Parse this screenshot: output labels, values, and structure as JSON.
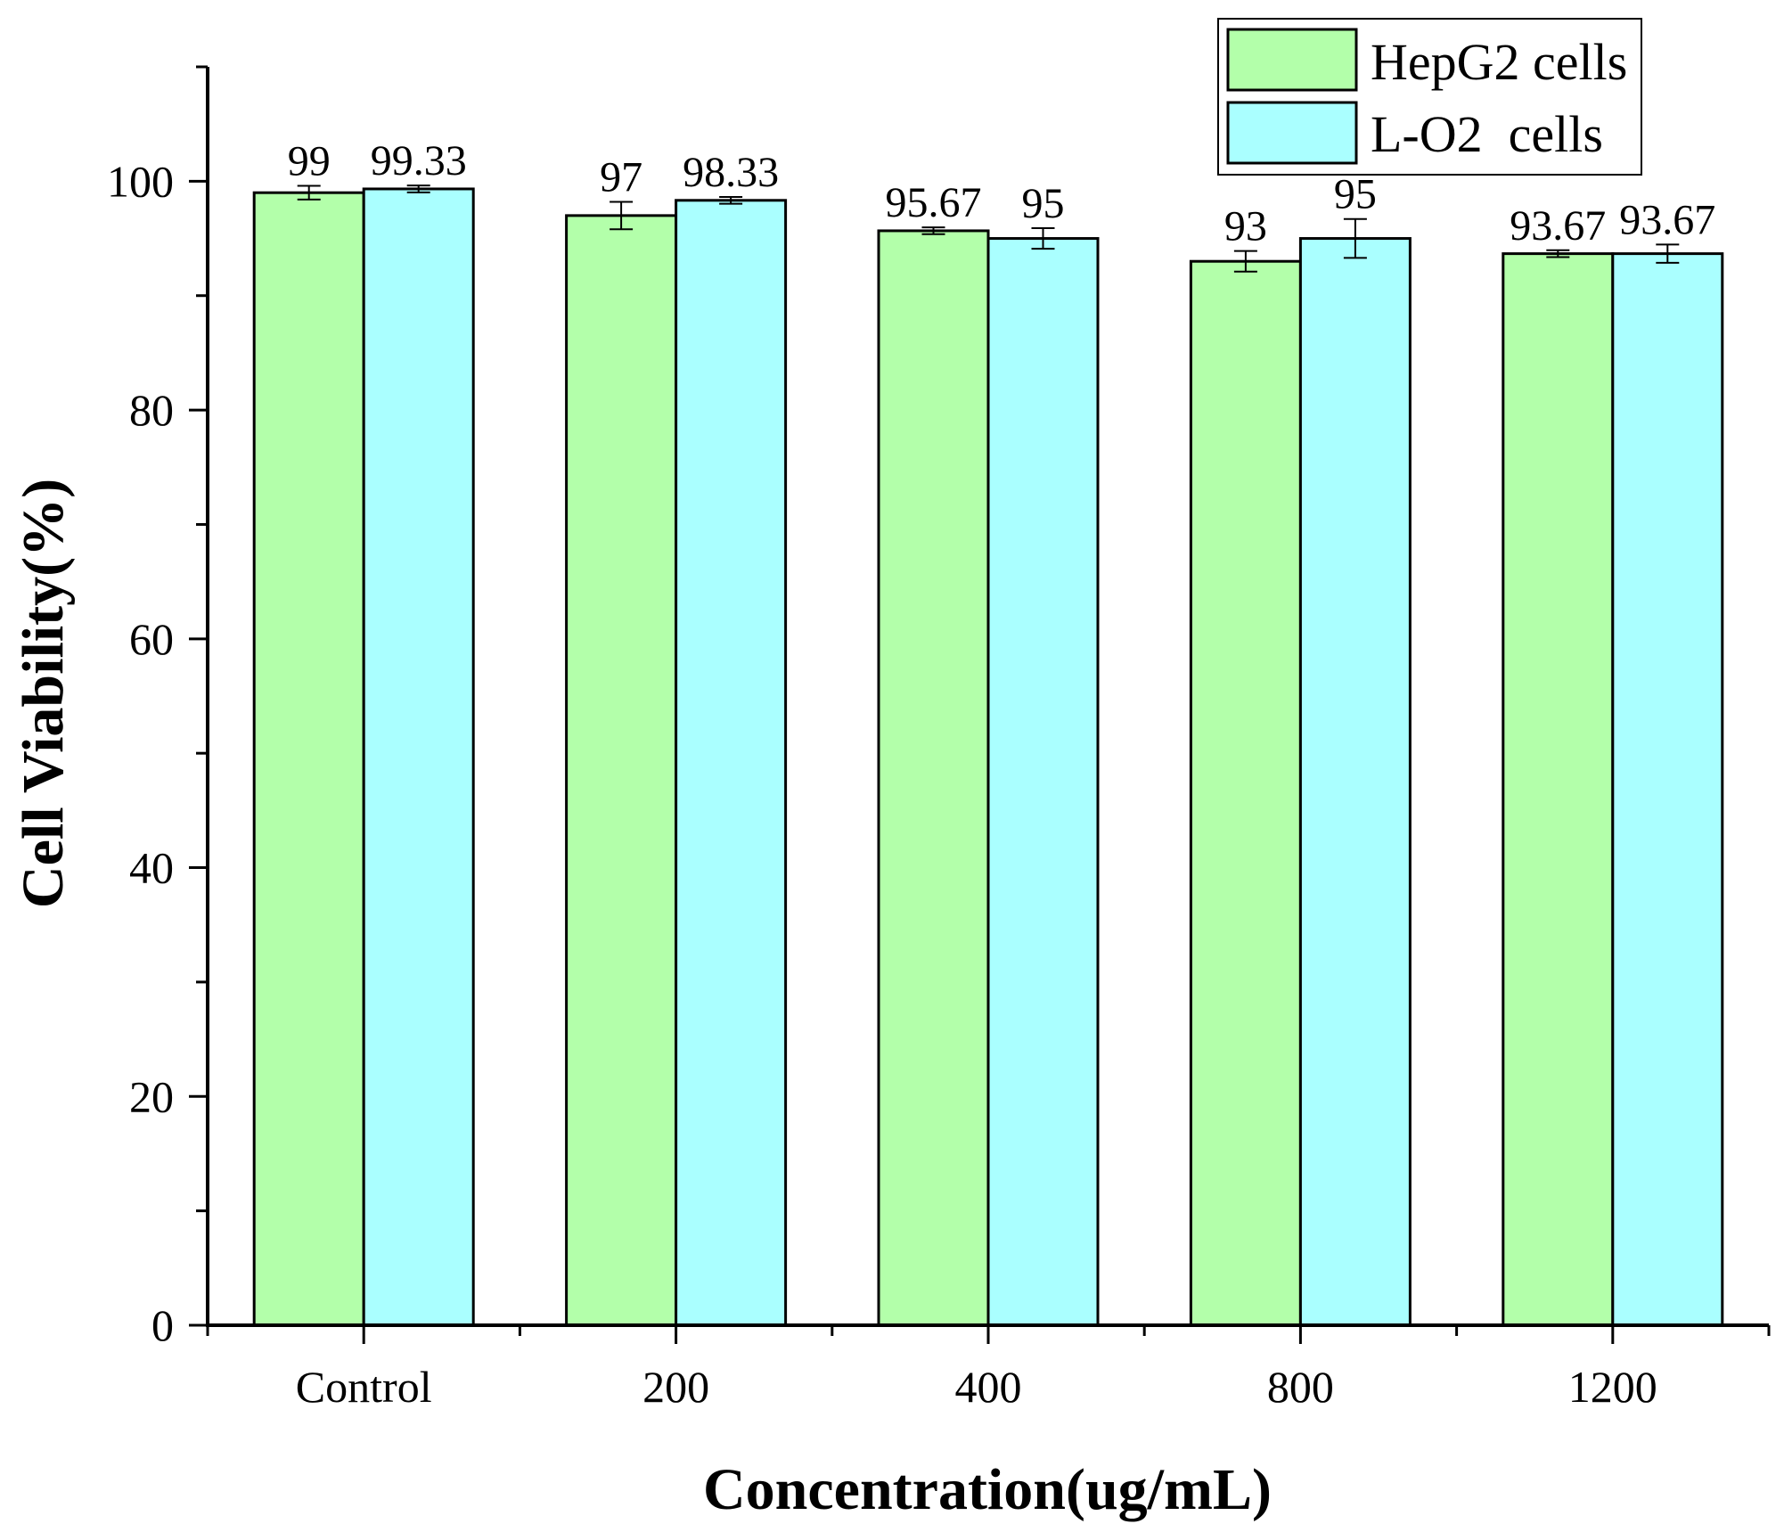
{
  "chart_data": {
    "type": "bar",
    "title": "",
    "xlabel": "Concentration(ug/mL)",
    "ylabel": "Cell Viability(%)",
    "ylim": [
      0,
      110
    ],
    "yticks": [
      0,
      20,
      40,
      60,
      80,
      100
    ],
    "categories": [
      "Control",
      "200",
      "400",
      "800",
      "1200"
    ],
    "series": [
      {
        "name": "HepG2 cells",
        "color": "#b3ffaa",
        "values": [
          99,
          97,
          95.67,
          93,
          93.67
        ],
        "errors": [
          0.6,
          1.2,
          0.3,
          0.9,
          0.3
        ],
        "labels": [
          "99",
          "97",
          "95.67",
          "93",
          "93.67"
        ]
      },
      {
        "name": "L-O2  cells",
        "color": "#aaffff",
        "values": [
          99.33,
          98.33,
          95,
          95,
          93.67
        ],
        "errors": [
          0.3,
          0.3,
          0.9,
          1.7,
          0.8
        ],
        "labels": [
          "99.33",
          "98.33",
          "95",
          "95",
          "93.67"
        ]
      }
    ],
    "legend_position": "top-right",
    "grid": false
  }
}
